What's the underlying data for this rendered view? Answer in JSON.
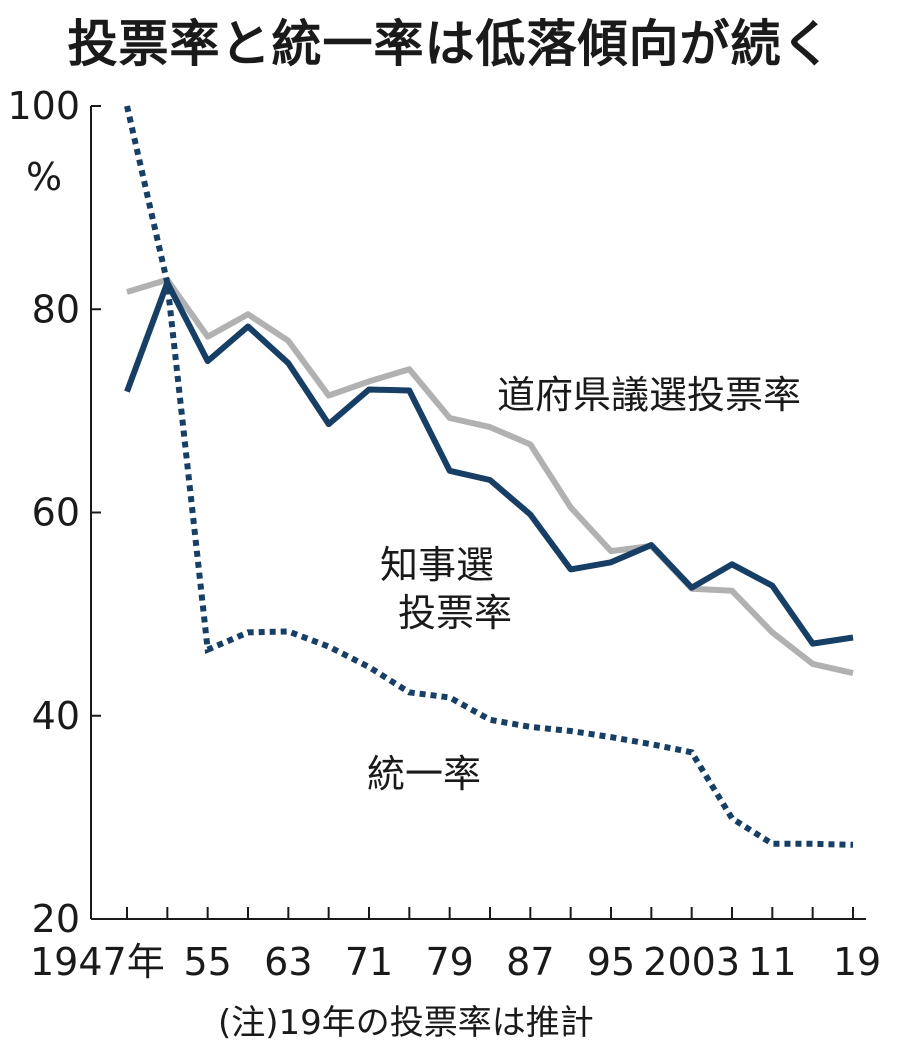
{
  "title": "投票率と統一率は低落傾向が続く",
  "note": "(注)19年の投票率は推計",
  "colors": {
    "navy": "#173f66",
    "gray": "#b1b1b1",
    "axis": "#1a1a1a"
  },
  "chart_data": {
    "type": "line",
    "title": "投票率と統一率は低落傾向が続く",
    "ylabel": "%",
    "ylim": [
      20,
      100
    ],
    "yticks": [
      20,
      40,
      60,
      80,
      100
    ],
    "ytick_labels": [
      "20",
      "40",
      "60",
      "80",
      "100"
    ],
    "y_unit_label": "%",
    "x": [
      1947,
      1951,
      1955,
      1959,
      1963,
      1967,
      1971,
      1975,
      1979,
      1983,
      1987,
      1991,
      1995,
      1999,
      2003,
      2007,
      2011,
      2015,
      2019
    ],
    "xlim": [
      1947,
      2019
    ],
    "xtick_labels": [
      {
        "x": 1947,
        "label": "1947年"
      },
      {
        "x": 1955,
        "label": "55"
      },
      {
        "x": 1963,
        "label": "63"
      },
      {
        "x": 1971,
        "label": "71"
      },
      {
        "x": 1979,
        "label": "79"
      },
      {
        "x": 1987,
        "label": "87"
      },
      {
        "x": 1995,
        "label": "95"
      },
      {
        "x": 2003,
        "label": "2003"
      },
      {
        "x": 2011,
        "label": "11"
      },
      {
        "x": 2019,
        "label": "19"
      }
    ],
    "series": [
      {
        "name": "道府県議選投票率",
        "style": "solid",
        "color": "gray",
        "values": [
          81.7,
          82.9,
          77.3,
          79.5,
          76.9,
          71.5,
          72.9,
          74.1,
          69.3,
          68.4,
          66.7,
          60.5,
          56.2,
          56.7,
          52.5,
          52.3,
          48.2,
          45.1,
          44.2
        ]
      },
      {
        "name": "知事選投票率",
        "style": "solid",
        "color": "navy",
        "values": [
          71.9,
          82.6,
          74.9,
          78.3,
          74.7,
          68.7,
          72.1,
          72.0,
          64.1,
          63.2,
          59.8,
          54.4,
          55.1,
          56.8,
          52.6,
          54.9,
          52.8,
          47.1,
          47.7
        ]
      },
      {
        "name": "統一率",
        "style": "dotted",
        "color": "navy",
        "values": [
          100,
          82.6,
          46.5,
          48.2,
          48.3,
          46.8,
          44.8,
          42.3,
          41.8,
          39.6,
          38.9,
          38.5,
          37.9,
          37.2,
          36.4,
          29.9,
          27.4,
          27.4,
          27.3
        ]
      }
    ],
    "annotations": {
      "pref_line1": "道府県議選投票率",
      "gov_line1": "知事選",
      "gov_line2": "投票率",
      "unified": "統一率"
    },
    "grid": false,
    "legend": "none"
  }
}
